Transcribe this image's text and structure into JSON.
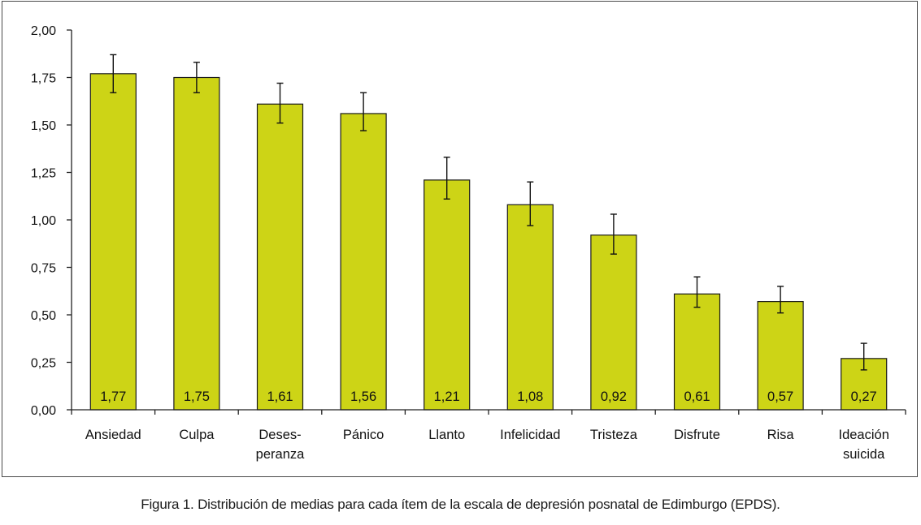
{
  "caption": "Figura 1. Distribución de medias para cada ítem de la escala de depresión posnatal de Edimburgo (EPDS).",
  "chart_data": {
    "type": "bar",
    "categories": [
      [
        "Ansiedad"
      ],
      [
        "Culpa"
      ],
      [
        "Deses-",
        "peranza"
      ],
      [
        "Pánico"
      ],
      [
        "Llanto"
      ],
      [
        "Infelicidad"
      ],
      [
        "Tristeza"
      ],
      [
        "Disfrute"
      ],
      [
        "Risa"
      ],
      [
        "Ideación",
        "suicida"
      ]
    ],
    "values": [
      1.77,
      1.75,
      1.61,
      1.56,
      1.21,
      1.08,
      0.92,
      0.61,
      0.57,
      0.27
    ],
    "value_labels": [
      "1,77",
      "1,75",
      "1,61",
      "1,56",
      "1,21",
      "1,08",
      "0,92",
      "0,61",
      "0,57",
      "0,27"
    ],
    "error_upper": [
      1.87,
      1.83,
      1.72,
      1.67,
      1.33,
      1.2,
      1.03,
      0.7,
      0.65,
      0.35
    ],
    "error_lower": [
      1.67,
      1.67,
      1.51,
      1.47,
      1.11,
      0.97,
      0.82,
      0.54,
      0.51,
      0.21
    ],
    "ylim": [
      0,
      2.0
    ],
    "yticks": [
      0,
      0.25,
      0.5,
      0.75,
      1.0,
      1.25,
      1.5,
      1.75,
      2.0
    ],
    "ytick_labels": [
      "0,00",
      "0,25",
      "0,50",
      "0,75",
      "1,00",
      "1,25",
      "1,50",
      "1,75",
      "2,00"
    ],
    "bar_color": "#cdd416",
    "bar_edge_color": "#1a1a1a",
    "grid": false,
    "legend": "none"
  }
}
